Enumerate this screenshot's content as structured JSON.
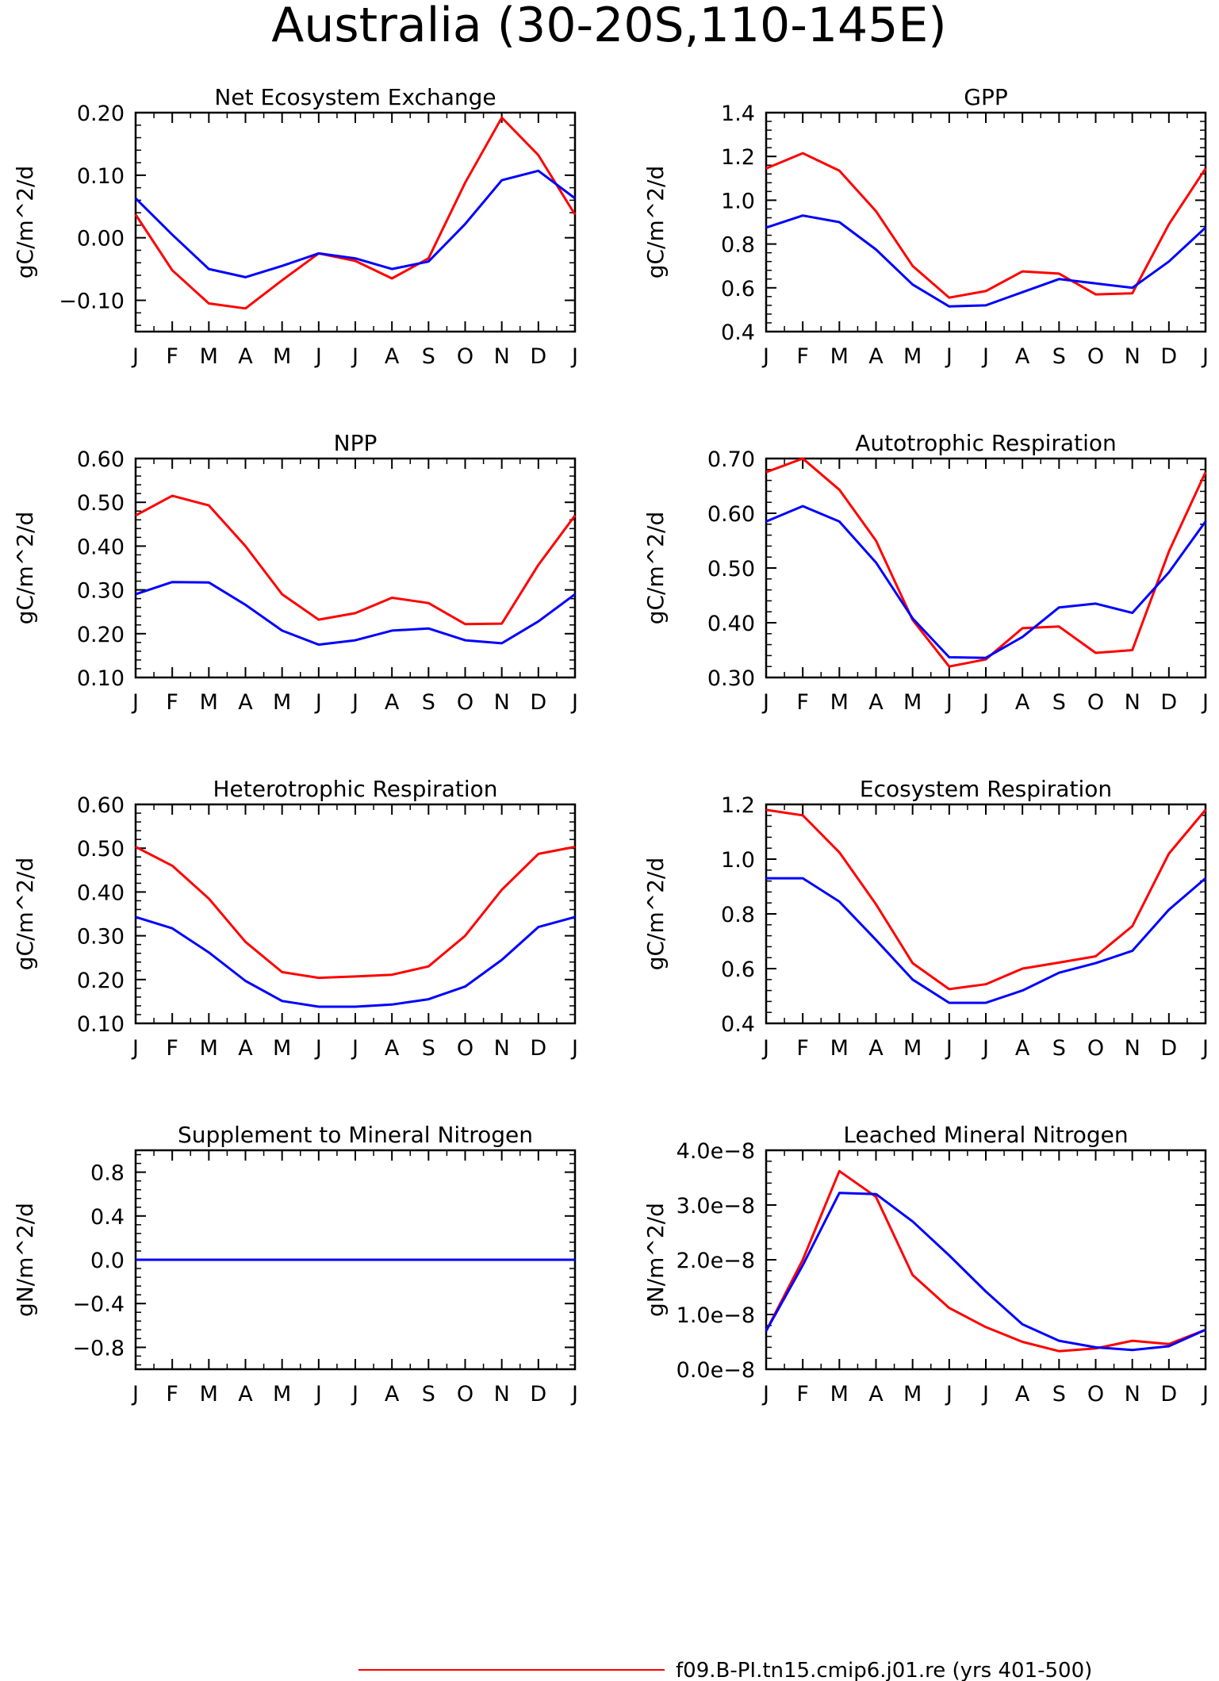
{
  "title": "Australia (30-20S,110-145E)",
  "legend": [
    {
      "label": "f09.B-PI.tn15.cmip6.j01.re (yrs 401-500)",
      "color": "#ff0000"
    }
  ],
  "months": [
    "J",
    "F",
    "M",
    "A",
    "M",
    "J",
    "J",
    "A",
    "S",
    "O",
    "N",
    "D",
    "J"
  ],
  "colors": {
    "series1": "#ff0000",
    "series2": "#0000ff"
  },
  "chart_data": [
    {
      "type": "line",
      "title": "Net Ecosystem Exchange",
      "ylabel": "gC/m^2/d",
      "ylim": [
        -0.15,
        0.2
      ],
      "yticks": [
        0.2,
        0.1,
        0.0,
        -0.1
      ],
      "yticklabels": [
        "0.20",
        "0.10",
        "0.00",
        "−0.10"
      ],
      "series": [
        {
          "color": "#ff0000",
          "values": [
            0.037,
            -0.052,
            -0.105,
            -0.113,
            -0.068,
            -0.025,
            -0.037,
            -0.065,
            -0.033,
            0.088,
            0.192,
            0.132,
            0.037
          ]
        },
        {
          "color": "#0000ff",
          "values": [
            0.063,
            0.005,
            -0.05,
            -0.063,
            -0.045,
            -0.025,
            -0.033,
            -0.05,
            -0.038,
            0.022,
            0.092,
            0.107,
            0.063
          ]
        }
      ]
    },
    {
      "type": "line",
      "title": "GPP",
      "ylabel": "gC/m^2/d",
      "ylim": [
        0.4,
        1.4
      ],
      "yticks": [
        1.4,
        1.2,
        1.0,
        0.8,
        0.6,
        0.4
      ],
      "yticklabels": [
        "1.4",
        "1.2",
        "1.0",
        "0.8",
        "0.6",
        "0.4"
      ],
      "series": [
        {
          "color": "#ff0000",
          "values": [
            1.145,
            1.215,
            1.135,
            0.95,
            0.7,
            0.555,
            0.585,
            0.675,
            0.665,
            0.57,
            0.575,
            0.89,
            1.145
          ]
        },
        {
          "color": "#0000ff",
          "values": [
            0.875,
            0.93,
            0.9,
            0.775,
            0.615,
            0.515,
            0.52,
            0.58,
            0.64,
            0.62,
            0.6,
            0.72,
            0.875
          ]
        }
      ]
    },
    {
      "type": "line",
      "title": "NPP",
      "ylabel": "gC/m^2/d",
      "ylim": [
        0.1,
        0.6
      ],
      "yticks": [
        0.6,
        0.5,
        0.4,
        0.3,
        0.2,
        0.1
      ],
      "yticklabels": [
        "0.60",
        "0.50",
        "0.40",
        "0.30",
        "0.20",
        "0.10"
      ],
      "series": [
        {
          "color": "#ff0000",
          "values": [
            0.47,
            0.515,
            0.493,
            0.4,
            0.29,
            0.232,
            0.247,
            0.282,
            0.27,
            0.222,
            0.223,
            0.357,
            0.47
          ]
        },
        {
          "color": "#0000ff",
          "values": [
            0.29,
            0.318,
            0.317,
            0.266,
            0.207,
            0.175,
            0.185,
            0.207,
            0.212,
            0.185,
            0.178,
            0.228,
            0.29
          ]
        }
      ]
    },
    {
      "type": "line",
      "title": "Autotrophic Respiration",
      "ylabel": "gC/m^2/d",
      "ylim": [
        0.3,
        0.7
      ],
      "yticks": [
        0.7,
        0.6,
        0.5,
        0.4,
        0.3
      ],
      "yticklabels": [
        "0.70",
        "0.60",
        "0.50",
        "0.40",
        "0.30"
      ],
      "series": [
        {
          "color": "#ff0000",
          "values": [
            0.675,
            0.7,
            0.643,
            0.55,
            0.405,
            0.32,
            0.333,
            0.39,
            0.393,
            0.345,
            0.35,
            0.53,
            0.675
          ]
        },
        {
          "color": "#0000ff",
          "values": [
            0.585,
            0.613,
            0.585,
            0.51,
            0.408,
            0.337,
            0.336,
            0.374,
            0.428,
            0.435,
            0.418,
            0.492,
            0.585
          ]
        }
      ]
    },
    {
      "type": "line",
      "title": "Heterotrophic Respiration",
      "ylabel": "gC/m^2/d",
      "ylim": [
        0.1,
        0.6
      ],
      "yticks": [
        0.6,
        0.5,
        0.4,
        0.3,
        0.2,
        0.1
      ],
      "yticklabels": [
        "0.60",
        "0.50",
        "0.40",
        "0.30",
        "0.20",
        "0.10"
      ],
      "series": [
        {
          "color": "#ff0000",
          "values": [
            0.503,
            0.46,
            0.385,
            0.286,
            0.217,
            0.204,
            0.207,
            0.211,
            0.23,
            0.3,
            0.405,
            0.487,
            0.503
          ]
        },
        {
          "color": "#0000ff",
          "values": [
            0.343,
            0.317,
            0.262,
            0.197,
            0.151,
            0.138,
            0.138,
            0.143,
            0.155,
            0.184,
            0.245,
            0.32,
            0.343
          ]
        }
      ]
    },
    {
      "type": "line",
      "title": "Ecosystem Respiration",
      "ylabel": "gC/m^2/d",
      "ylim": [
        0.4,
        1.2
      ],
      "yticks": [
        1.2,
        1.0,
        0.8,
        0.6,
        0.4
      ],
      "yticklabels": [
        "1.2",
        "1.0",
        "0.8",
        "0.6",
        "0.4"
      ],
      "series": [
        {
          "color": "#ff0000",
          "values": [
            1.18,
            1.16,
            1.025,
            0.835,
            0.62,
            0.525,
            0.543,
            0.6,
            0.622,
            0.645,
            0.755,
            1.02,
            1.18
          ]
        },
        {
          "color": "#0000ff",
          "values": [
            0.93,
            0.93,
            0.845,
            0.705,
            0.56,
            0.475,
            0.475,
            0.52,
            0.585,
            0.62,
            0.665,
            0.815,
            0.93
          ]
        }
      ]
    },
    {
      "type": "line",
      "title": "Supplement to Mineral Nitrogen",
      "ylabel": "gN/m^2/d",
      "ylim": [
        -1.0,
        1.0
      ],
      "yticks": [
        0.8,
        0.4,
        0.0,
        -0.4,
        -0.8
      ],
      "yticklabels": [
        "0.8",
        "0.4",
        "0.0",
        "−0.4",
        "−0.8"
      ],
      "series": [
        {
          "color": "#ff0000",
          "values": [
            0,
            0,
            0,
            0,
            0,
            0,
            0,
            0,
            0,
            0,
            0,
            0,
            0
          ]
        },
        {
          "color": "#0000ff",
          "values": [
            0,
            0,
            0,
            0,
            0,
            0,
            0,
            0,
            0,
            0,
            0,
            0,
            0
          ]
        }
      ]
    },
    {
      "type": "line",
      "title": "Leached Mineral Nitrogen",
      "ylabel": "gN/m^2/d",
      "ylim": [
        0,
        4e-08
      ],
      "yticks": [
        4e-08,
        3e-08,
        2e-08,
        1e-08,
        0
      ],
      "yticklabels": [
        "4.0e−8",
        "3.0e−8",
        "2.0e−8",
        "1.0e−8",
        "0.0e−8"
      ],
      "series": [
        {
          "color": "#ff0000",
          "values": [
            7e-09,
            2e-08,
            3.62e-08,
            3.15e-08,
            1.72e-08,
            1.12e-08,
            7.7e-09,
            5e-09,
            3.3e-09,
            3.8e-09,
            5.2e-09,
            4.6e-09,
            7.2e-09
          ]
        },
        {
          "color": "#0000ff",
          "values": [
            7e-09,
            1.9e-08,
            3.22e-08,
            3.2e-08,
            2.7e-08,
            2.08e-08,
            1.42e-08,
            8.2e-09,
            5.2e-09,
            4e-09,
            3.5e-09,
            4.2e-09,
            7.2e-09
          ]
        }
      ]
    }
  ]
}
